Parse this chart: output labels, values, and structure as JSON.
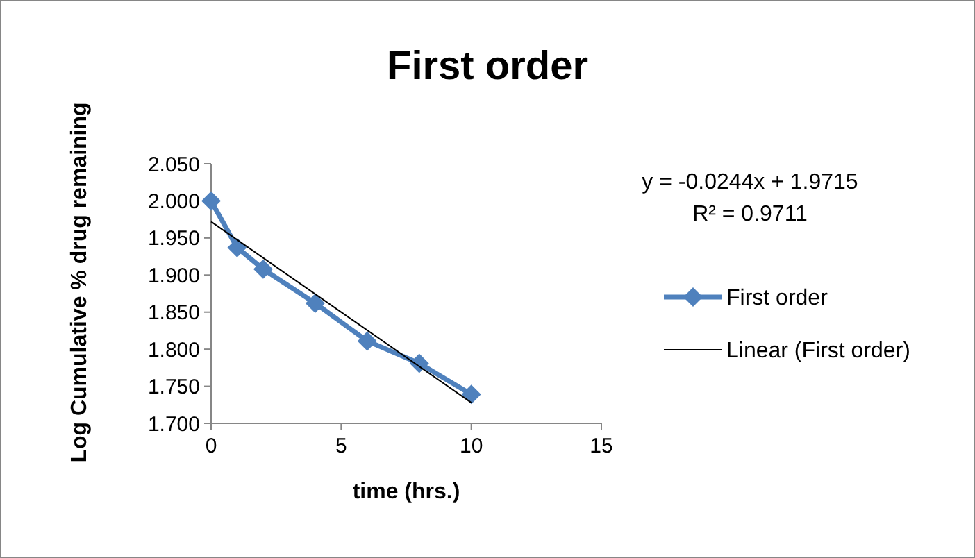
{
  "chart_data": {
    "type": "line",
    "title": "First order",
    "xlabel": "time (hrs.)",
    "ylabel": "Log Cumulative % drug remaining",
    "x": [
      0,
      1,
      2,
      4,
      6,
      8,
      10
    ],
    "series": [
      {
        "name": "First order",
        "color": "#4f81bd",
        "values": [
          2.0,
          1.937,
          1.908,
          1.862,
          1.811,
          1.781,
          1.739
        ],
        "marker": "diamond"
      },
      {
        "name": "Linear (First order)",
        "color": "#000000",
        "type": "line",
        "x": [
          0,
          10
        ],
        "values": [
          1.972,
          1.728
        ],
        "marker": "none"
      }
    ],
    "xlim": [
      0,
      15
    ],
    "xticks": [
      0,
      5,
      10,
      15
    ],
    "ylim": [
      1.7,
      2.05
    ],
    "yticks": [
      {
        "value": 1.7,
        "label": "1.700"
      },
      {
        "value": 1.75,
        "label": "1.750"
      },
      {
        "value": 1.8,
        "label": "1.800"
      },
      {
        "value": 1.85,
        "label": "1.850"
      },
      {
        "value": 1.9,
        "label": "1.900"
      },
      {
        "value": 1.95,
        "label": "1.950"
      },
      {
        "value": 2.0,
        "label": "2.000"
      },
      {
        "value": 2.05,
        "label": "2.050"
      }
    ],
    "grid": false,
    "legend": "right",
    "annotations": [
      "y = -0.0244x + 1.9715",
      "R² = 0.9711"
    ]
  }
}
